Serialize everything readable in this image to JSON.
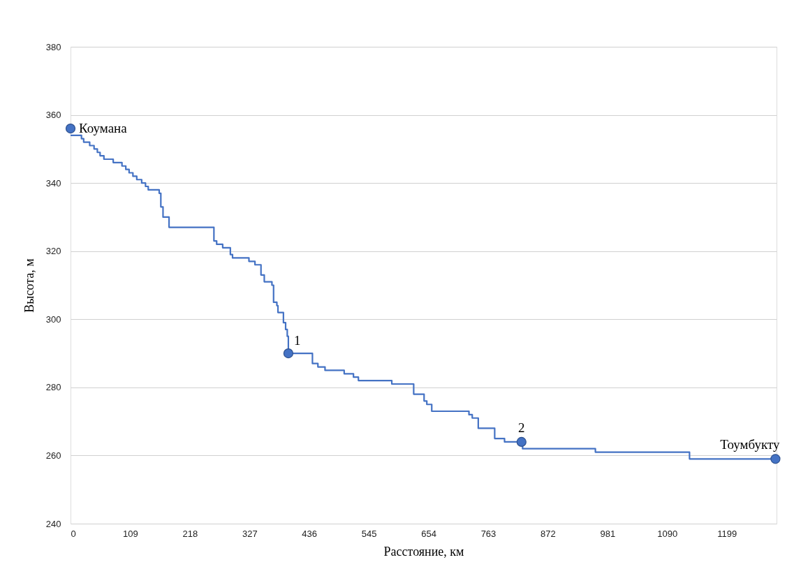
{
  "chart_data": {
    "type": "step",
    "xlabel": "Расстояние, км",
    "ylabel": "Высота, м",
    "xlim": [
      0,
      1290
    ],
    "xticks": [
      0,
      109,
      218,
      327,
      436,
      545,
      654,
      763,
      872,
      981,
      1090,
      1199
    ],
    "ylim": [
      240,
      380
    ],
    "yticks": [
      240,
      260,
      280,
      300,
      320,
      340,
      360,
      380
    ],
    "grid": "y",
    "line_style": "solid",
    "series": [
      {
        "color": "#4472c4",
        "marker": "none",
        "x": [
          0,
          20,
          24,
          35,
          43,
          49,
          54,
          61,
          78,
          94,
          101,
          107,
          114,
          121,
          130,
          137,
          142,
          162,
          165,
          169,
          180,
          262,
          267,
          278,
          292,
          296,
          326,
          337,
          348,
          354,
          368,
          371,
          377,
          379,
          389,
          393,
          396,
          398,
          442,
          452,
          465,
          500,
          517,
          526,
          587,
          627,
          646,
          651,
          660,
          728,
          734,
          745,
          775,
          793,
          826,
          959,
          1131,
          1288
        ],
        "values": [
          354,
          353,
          352,
          351,
          350,
          349,
          348,
          347,
          346,
          345,
          344,
          343,
          342,
          341,
          340,
          339,
          338,
          337,
          333,
          330,
          327,
          323,
          322,
          321,
          319,
          318,
          317,
          316,
          313,
          311,
          310,
          305,
          304,
          302,
          299,
          297,
          295,
          290,
          287,
          286,
          285,
          284,
          283,
          282,
          281,
          278,
          276,
          275,
          273,
          272,
          271,
          268,
          265,
          264,
          262,
          261,
          259,
          259
        ]
      },
      {
        "type": "scatter",
        "color": "#4472c4",
        "marker": "circle",
        "x": [
          0,
          398,
          824,
          1288
        ],
        "values": [
          356,
          290,
          264,
          259
        ]
      }
    ],
    "annotations": [
      {
        "text": "Коумана",
        "x": 0,
        "y": 356
      },
      {
        "text": "1",
        "x": 398,
        "y": 290
      },
      {
        "text": "2",
        "x": 824,
        "y": 264
      },
      {
        "text": "Тоумбукту",
        "x": 1288,
        "y": 259
      }
    ]
  }
}
